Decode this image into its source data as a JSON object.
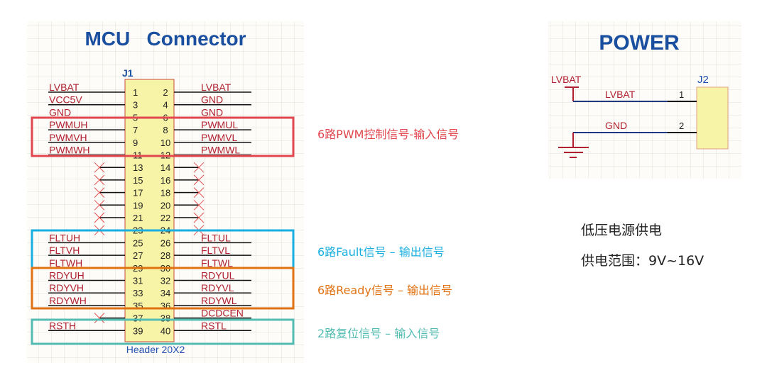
{
  "mcu": {
    "title": "MCU   Connector",
    "designator": "J1",
    "part": "Header 20X2",
    "rows": [
      {
        "l": "LVBAT",
        "lp": "1",
        "rp": "2",
        "r": "LVBAT"
      },
      {
        "l": "VCC5V",
        "lp": "3",
        "rp": "4",
        "r": "GND"
      },
      {
        "l": "GND",
        "lp": "5",
        "rp": "6",
        "r": "GND"
      },
      {
        "l": "PWMUH",
        "lp": "7",
        "rp": "8",
        "r": "PWMUL"
      },
      {
        "l": "PWMVH",
        "lp": "9",
        "rp": "10",
        "r": "PWMVL"
      },
      {
        "l": "PWMWH",
        "lp": "11",
        "rp": "12",
        "r": "PWMWL"
      },
      {
        "l": null,
        "lp": "13",
        "rp": "14",
        "r": null
      },
      {
        "l": null,
        "lp": "15",
        "rp": "16",
        "r": null
      },
      {
        "l": null,
        "lp": "17",
        "rp": "18",
        "r": null
      },
      {
        "l": null,
        "lp": "19",
        "rp": "20",
        "r": null
      },
      {
        "l": null,
        "lp": "21",
        "rp": "22",
        "r": null
      },
      {
        "l": null,
        "lp": "23",
        "rp": "24",
        "r": null
      },
      {
        "l": "FLTUH",
        "lp": "25",
        "rp": "26",
        "r": "FLTUL"
      },
      {
        "l": "FLTVH",
        "lp": "27",
        "rp": "28",
        "r": "FLTVL"
      },
      {
        "l": "FLTWH",
        "lp": "29",
        "rp": "30",
        "r": "FLTWL"
      },
      {
        "l": "RDYUH",
        "lp": "31",
        "rp": "32",
        "r": "RDYUL"
      },
      {
        "l": "RDYVH",
        "lp": "33",
        "rp": "34",
        "r": "RDYVL"
      },
      {
        "l": "RDYWH",
        "lp": "35",
        "rp": "36",
        "r": "RDYWL"
      },
      {
        "l": null,
        "lp": "37",
        "rp": "38",
        "r": "DCDCEN"
      },
      {
        "l": "RSTH",
        "lp": "39",
        "rp": "40",
        "r": "RSTL"
      }
    ]
  },
  "groups": [
    {
      "label": "6路PWM控制信号-输入信号",
      "color": "#e0474f"
    },
    {
      "label": "6路Fault信号 – 输出信号",
      "color": "#1aaee0"
    },
    {
      "label": "6路Ready信号 – 输出信号",
      "color": "#e07212"
    },
    {
      "label": "2路复位信号 – 输入信号",
      "color": "#52bcb2"
    }
  ],
  "power": {
    "title": "POWER",
    "designator": "J2",
    "port_label": "LVBAT",
    "net1": "LVBAT",
    "net2": "GND",
    "pin1": "1",
    "pin2": "2"
  },
  "notes": {
    "line1": "低压电源供电",
    "line2": "供电范围：9V~16V"
  }
}
